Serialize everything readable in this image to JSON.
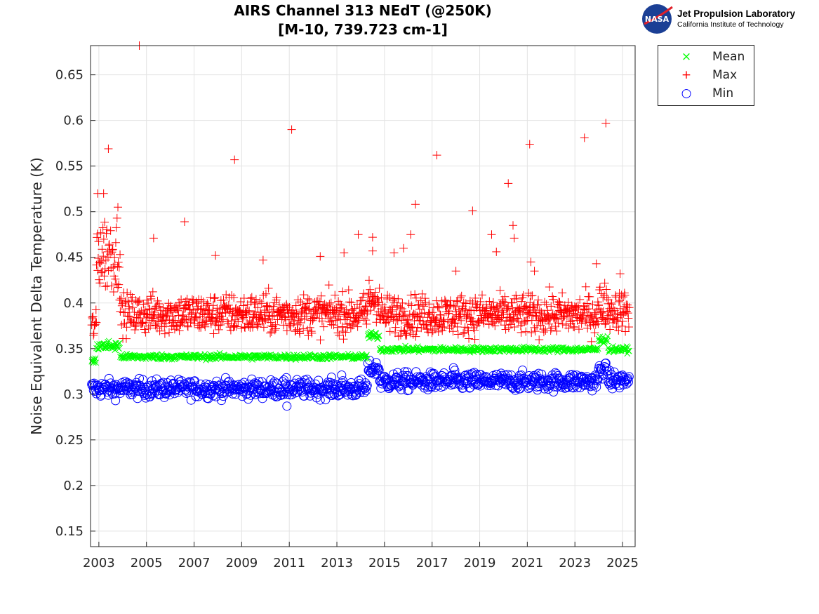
{
  "chart_data": {
    "type": "scatter",
    "title": [
      "AIRS Channel 313 NEdT (@250K)",
      "[M-10, 739.723 cm-1]"
    ],
    "xlabel": "",
    "ylabel": "Noise Equivalent Delta Temperature (K)",
    "xlim": [
      2002.65,
      2025.53
    ],
    "ylim": [
      0.133,
      0.682
    ],
    "grid": true,
    "legend_position": "outside-top-right",
    "xticks": [
      2003,
      2005,
      2007,
      2009,
      2011,
      2013,
      2015,
      2017,
      2019,
      2021,
      2023,
      2025
    ],
    "xtick_labels": [
      "2003",
      "2005",
      "2007",
      "2009",
      "2011",
      "2013",
      "2015",
      "2017",
      "2019",
      "2021",
      "2023",
      "2025"
    ],
    "yticks": [
      0.15,
      0.2,
      0.25,
      0.3,
      0.35,
      0.4,
      0.45,
      0.5,
      0.55,
      0.6,
      0.65
    ],
    "ytick_labels": [
      "0.15",
      "0.2",
      "0.25",
      "0.3",
      "0.35",
      "0.4",
      "0.45",
      "0.5",
      "0.55",
      "0.6",
      "0.65"
    ],
    "series": [
      {
        "name": "Mean",
        "marker": "x",
        "color": "#00ff00",
        "segments": [
          [
            2002.7,
            2002.9,
            0.336,
            0.002
          ],
          [
            2002.9,
            2003.9,
            0.353,
            0.003
          ],
          [
            2003.9,
            2014.3,
            0.341,
            0.0015
          ],
          [
            2014.3,
            2014.8,
            0.364,
            0.002
          ],
          [
            2014.8,
            2024.0,
            0.349,
            0.0015
          ],
          [
            2024.0,
            2024.4,
            0.36,
            0.002
          ],
          [
            2024.4,
            2025.3,
            0.349,
            0.0015
          ]
        ],
        "outliers": []
      },
      {
        "name": "Max",
        "marker": "+",
        "color": "#ff0000",
        "segments": [
          [
            2002.7,
            2002.9,
            0.375,
            0.008
          ],
          [
            2002.9,
            2003.9,
            0.455,
            0.022
          ],
          [
            2003.9,
            2014.3,
            0.388,
            0.011
          ],
          [
            2014.3,
            2014.8,
            0.405,
            0.012
          ],
          [
            2014.8,
            2024.0,
            0.387,
            0.011
          ],
          [
            2024.0,
            2024.4,
            0.398,
            0.012
          ],
          [
            2024.4,
            2025.3,
            0.392,
            0.011
          ]
        ],
        "outliers": [
          [
            2004.7,
            0.682
          ],
          [
            2003.4,
            0.569
          ],
          [
            2008.7,
            0.557
          ],
          [
            2011.1,
            0.59
          ],
          [
            2017.2,
            0.562
          ],
          [
            2020.2,
            0.531
          ],
          [
            2021.1,
            0.574
          ],
          [
            2023.4,
            0.581
          ],
          [
            2024.3,
            0.597
          ],
          [
            2016.3,
            0.508
          ],
          [
            2018.7,
            0.501
          ],
          [
            2006.6,
            0.489
          ],
          [
            2005.3,
            0.471
          ],
          [
            2019.5,
            0.475
          ],
          [
            2020.4,
            0.485
          ],
          [
            2020.45,
            0.471
          ],
          [
            2013.9,
            0.475
          ],
          [
            2014.5,
            0.472
          ],
          [
            2016.1,
            0.475
          ],
          [
            2013.3,
            0.455
          ],
          [
            2014.5,
            0.457
          ],
          [
            2015.4,
            0.455
          ],
          [
            2015.8,
            0.46
          ],
          [
            2019.7,
            0.456
          ],
          [
            2012.3,
            0.451
          ],
          [
            2007.9,
            0.452
          ],
          [
            2021.15,
            0.445
          ],
          [
            2024.9,
            0.432
          ],
          [
            2023.9,
            0.443
          ],
          [
            2003.2,
            0.52
          ],
          [
            2002.95,
            0.52
          ],
          [
            2003.8,
            0.505
          ],
          [
            2009.9,
            0.447
          ],
          [
            2021.3,
            0.435
          ],
          [
            2018.0,
            0.435
          ]
        ]
      },
      {
        "name": "Min",
        "marker": "o",
        "color": "#0000ff",
        "segments": [
          [
            2002.7,
            2014.3,
            0.306,
            0.005
          ],
          [
            2014.3,
            2014.8,
            0.328,
            0.004
          ],
          [
            2014.8,
            2024.0,
            0.314,
            0.005
          ],
          [
            2024.0,
            2024.4,
            0.326,
            0.004
          ],
          [
            2024.4,
            2025.3,
            0.315,
            0.005
          ]
        ],
        "outliers": [
          [
            2010.9,
            0.287
          ],
          [
            2013.2,
            0.321
          ],
          [
            2017.9,
            0.329
          ]
        ]
      }
    ]
  },
  "logo": {
    "org": "Jet Propulsion Laboratory",
    "sub": "California Institute of Technology",
    "badge": "NASA"
  }
}
